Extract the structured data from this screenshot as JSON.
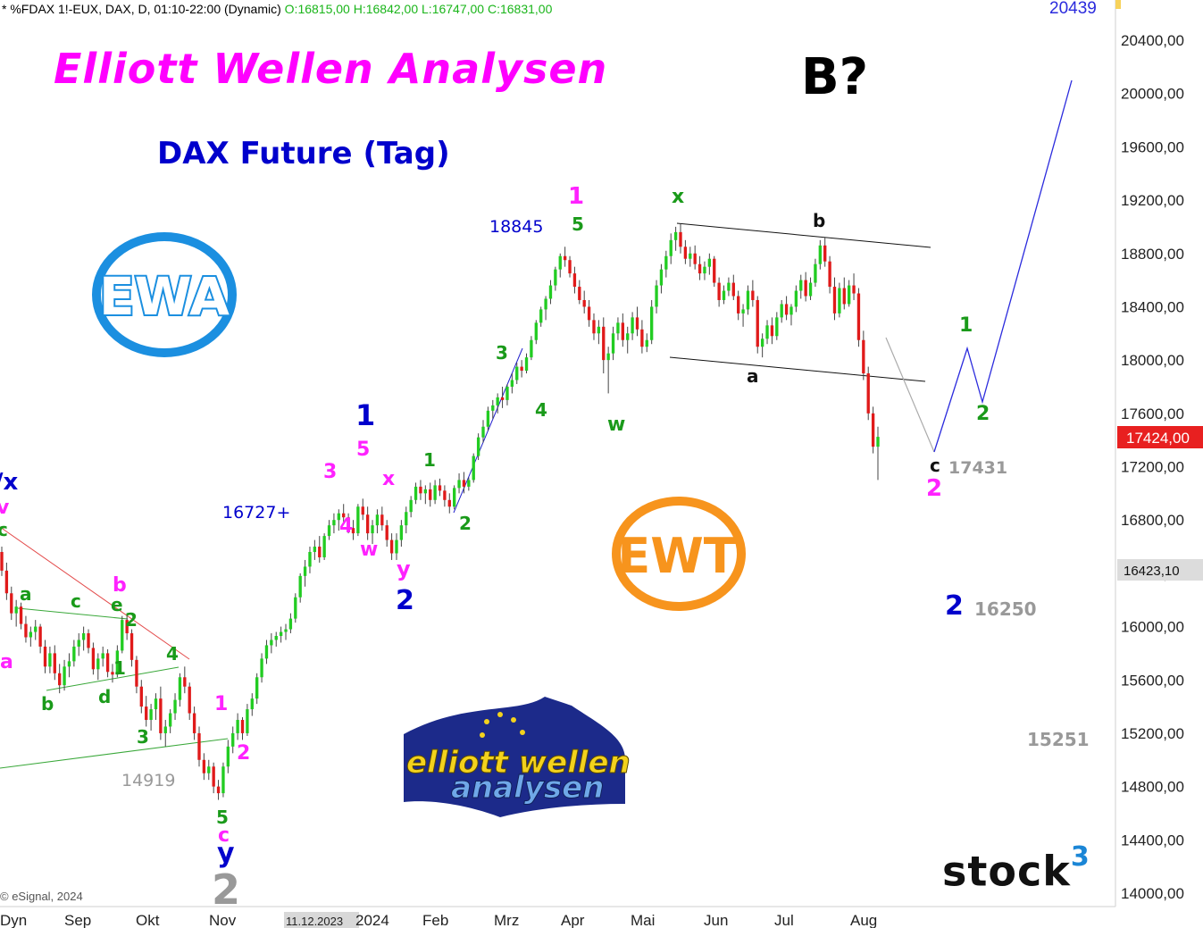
{
  "header": {
    "symbol_text": "* %FDAX 1!-EUX, DAX, D, 01:10-22:00 (Dynamic)",
    "ohlc_text": "O:16815,00 H:16842,00 L:16747,00 C:16831,00"
  },
  "titles": {
    "main": "Elliott Wellen Analysen",
    "instrument": "DAX Future (Tag)",
    "scenario": "B?"
  },
  "logos": {
    "ewa": "EWA",
    "ewt": "EWT",
    "ewa_banner_line1": "elliott wellen",
    "ewa_banner_line2": "analysen",
    "stock3": "stock",
    "stock3_sup": "3"
  },
  "copyright": "© eSignal, 2024",
  "chart_data": {
    "type": "candlestick",
    "y_axis_labels": [
      "20400,00",
      "20000,00",
      "19600,00",
      "19200,00",
      "18800,00",
      "18400,00",
      "18000,00",
      "17600,00",
      "17200,00",
      "16800,00",
      "16400,00",
      "16000,00",
      "15600,00",
      "15200,00",
      "14800,00",
      "14400,00",
      "14000,00"
    ],
    "y_values": [
      20400,
      20000,
      19600,
      19200,
      18800,
      18400,
      18000,
      17600,
      17200,
      16800,
      16400,
      16000,
      15600,
      15200,
      14800,
      14400,
      14000
    ],
    "last_price_label": "17424,00",
    "last_price": 17424,
    "crosshair_label": "16423,10",
    "crosshair_price": 16423.1,
    "top_target_label": "20439",
    "x_axis_labels": [
      "Dyn",
      "Sep",
      "Okt",
      "Nov",
      "11.12.2023",
      "2024",
      "Feb",
      "Mrz",
      "Apr",
      "Mai",
      "Jun",
      "Jul",
      "Aug"
    ],
    "candles": [
      [
        16560,
        16600,
        16380,
        16420
      ],
      [
        16420,
        16480,
        16200,
        16250
      ],
      [
        16250,
        16300,
        16050,
        16100
      ],
      [
        16100,
        16200,
        16000,
        16150
      ],
      [
        16150,
        16180,
        15980,
        16020
      ],
      [
        16020,
        16080,
        15880,
        15920
      ],
      [
        15920,
        16000,
        15850,
        15960
      ],
      [
        15960,
        16050,
        15900,
        16000
      ],
      [
        16000,
        16020,
        15800,
        15850
      ],
      [
        15850,
        15900,
        15650,
        15700
      ],
      [
        15700,
        15850,
        15650,
        15800
      ],
      [
        15800,
        15860,
        15600,
        15650
      ],
      [
        15650,
        15720,
        15500,
        15560
      ],
      [
        15560,
        15750,
        15520,
        15700
      ],
      [
        15700,
        15800,
        15620,
        15740
      ],
      [
        15740,
        15900,
        15700,
        15850
      ],
      [
        15850,
        15950,
        15780,
        15900
      ],
      [
        15900,
        16000,
        15820,
        15950
      ],
      [
        15950,
        15980,
        15800,
        15840
      ],
      [
        15840,
        15880,
        15640,
        15680
      ],
      [
        15680,
        15800,
        15600,
        15760
      ],
      [
        15760,
        15850,
        15700,
        15800
      ],
      [
        15800,
        15830,
        15620,
        15660
      ],
      [
        15660,
        15720,
        15580,
        15640
      ],
      [
        15640,
        15860,
        15620,
        15820
      ],
      [
        15820,
        16080,
        15800,
        16050
      ],
      [
        16050,
        16100,
        15900,
        15950
      ],
      [
        15950,
        15980,
        15700,
        15750
      ],
      [
        15750,
        15780,
        15500,
        15550
      ],
      [
        15550,
        15600,
        15350,
        15400
      ],
      [
        15400,
        15480,
        15250,
        15300
      ],
      [
        15300,
        15420,
        15220,
        15380
      ],
      [
        15380,
        15500,
        15300,
        15460
      ],
      [
        15460,
        15550,
        15150,
        15200
      ],
      [
        15200,
        15300,
        15100,
        15250
      ],
      [
        15250,
        15380,
        15200,
        15350
      ],
      [
        15350,
        15500,
        15300,
        15450
      ],
      [
        15450,
        15650,
        15400,
        15620
      ],
      [
        15620,
        15700,
        15500,
        15550
      ],
      [
        15550,
        15580,
        15300,
        15350
      ],
      [
        15350,
        15400,
        15150,
        15200
      ],
      [
        15200,
        15250,
        14950,
        15000
      ],
      [
        15000,
        15050,
        14850,
        14900
      ],
      [
        14900,
        15000,
        14850,
        14950
      ],
      [
        14950,
        14980,
        14750,
        14800
      ],
      [
        14800,
        14850,
        14700,
        14750
      ],
      [
        14750,
        14980,
        14720,
        14950
      ],
      [
        14950,
        15150,
        14900,
        15100
      ],
      [
        15100,
        15250,
        15050,
        15200
      ],
      [
        15200,
        15350,
        15150,
        15300
      ],
      [
        15300,
        15320,
        15150,
        15200
      ],
      [
        15200,
        15420,
        15180,
        15380
      ],
      [
        15380,
        15500,
        15330,
        15460
      ],
      [
        15460,
        15650,
        15420,
        15620
      ],
      [
        15620,
        15800,
        15580,
        15760
      ],
      [
        15760,
        15900,
        15720,
        15860
      ],
      [
        15860,
        15950,
        15800,
        15900
      ],
      [
        15900,
        15960,
        15850,
        15930
      ],
      [
        15930,
        16000,
        15880,
        15960
      ],
      [
        15960,
        16020,
        15900,
        15980
      ],
      [
        15980,
        16100,
        15950,
        16060
      ],
      [
        16060,
        16250,
        16030,
        16220
      ],
      [
        16220,
        16400,
        16180,
        16380
      ],
      [
        16380,
        16500,
        16300,
        16450
      ],
      [
        16450,
        16600,
        16400,
        16560
      ],
      [
        16560,
        16650,
        16500,
        16600
      ],
      [
        16600,
        16680,
        16480,
        16520
      ],
      [
        16520,
        16700,
        16500,
        16680
      ],
      [
        16680,
        16800,
        16650,
        16760
      ],
      [
        16760,
        16850,
        16700,
        16800
      ],
      [
        16800,
        16880,
        16720,
        16850
      ],
      [
        16850,
        16920,
        16780,
        16820
      ],
      [
        16820,
        16850,
        16700,
        16740
      ],
      [
        16740,
        16800,
        16650,
        16700
      ],
      [
        16700,
        16920,
        16680,
        16900
      ],
      [
        16900,
        16960,
        16800,
        16840
      ],
      [
        16840,
        16900,
        16650,
        16700
      ],
      [
        16700,
        16800,
        16620,
        16760
      ],
      [
        16760,
        16880,
        16700,
        16840
      ],
      [
        16840,
        16900,
        16720,
        16760
      ],
      [
        16760,
        16800,
        16600,
        16650
      ],
      [
        16650,
        16700,
        16500,
        16550
      ],
      [
        16550,
        16700,
        16500,
        16650
      ],
      [
        16650,
        16800,
        16600,
        16760
      ],
      [
        16760,
        16900,
        16700,
        16860
      ],
      [
        16860,
        16980,
        16820,
        16950
      ],
      [
        16950,
        17080,
        16920,
        17050
      ],
      [
        17050,
        17100,
        16950,
        17000
      ],
      [
        17000,
        17060,
        16920,
        17030
      ],
      [
        17030,
        17080,
        16900,
        16950
      ],
      [
        16950,
        17100,
        16920,
        17060
      ],
      [
        17060,
        17110,
        16980,
        17020
      ],
      [
        17020,
        17060,
        16900,
        16950
      ],
      [
        16950,
        17000,
        16850,
        16900
      ],
      [
        16900,
        17060,
        16880,
        17040
      ],
      [
        17040,
        17150,
        17000,
        17100
      ],
      [
        17100,
        17160,
        17000,
        17050
      ],
      [
        17050,
        17120,
        17020,
        17100
      ],
      [
        17100,
        17300,
        17080,
        17280
      ],
      [
        17280,
        17450,
        17250,
        17420
      ],
      [
        17420,
        17550,
        17380,
        17500
      ],
      [
        17500,
        17650,
        17470,
        17620
      ],
      [
        17620,
        17700,
        17560,
        17660
      ],
      [
        17660,
        17750,
        17600,
        17720
      ],
      [
        17720,
        17800,
        17640,
        17700
      ],
      [
        17700,
        17820,
        17660,
        17800
      ],
      [
        17800,
        17900,
        17750,
        17850
      ],
      [
        17850,
        17980,
        17820,
        17950
      ],
      [
        17950,
        18000,
        17870,
        17920
      ],
      [
        17920,
        18050,
        17900,
        18020
      ],
      [
        18020,
        18180,
        18000,
        18150
      ],
      [
        18150,
        18300,
        18120,
        18280
      ],
      [
        18280,
        18400,
        18250,
        18380
      ],
      [
        18380,
        18480,
        18300,
        18460
      ],
      [
        18460,
        18600,
        18420,
        18560
      ],
      [
        18560,
        18700,
        18520,
        18680
      ],
      [
        18680,
        18800,
        18620,
        18780
      ],
      [
        18780,
        18850,
        18700,
        18750
      ],
      [
        18750,
        18780,
        18620,
        18650
      ],
      [
        18650,
        18700,
        18500,
        18550
      ],
      [
        18550,
        18600,
        18420,
        18450
      ],
      [
        18450,
        18520,
        18350,
        18400
      ],
      [
        18400,
        18450,
        18250,
        18300
      ],
      [
        18300,
        18350,
        18150,
        18200
      ],
      [
        18200,
        18300,
        18120,
        18250
      ],
      [
        18250,
        18320,
        17900,
        18000
      ],
      [
        18000,
        18100,
        17750,
        18050
      ],
      [
        18050,
        18250,
        18000,
        18200
      ],
      [
        18200,
        18320,
        18150,
        18280
      ],
      [
        18280,
        18350,
        18100,
        18150
      ],
      [
        18150,
        18250,
        18050,
        18200
      ],
      [
        18200,
        18360,
        18150,
        18320
      ],
      [
        18320,
        18400,
        18180,
        18230
      ],
      [
        18230,
        18300,
        18050,
        18100
      ],
      [
        18100,
        18200,
        18060,
        18150
      ],
      [
        18150,
        18450,
        18120,
        18400
      ],
      [
        18400,
        18600,
        18350,
        18560
      ],
      [
        18560,
        18720,
        18500,
        18680
      ],
      [
        18680,
        18820,
        18620,
        18780
      ],
      [
        18780,
        18950,
        18720,
        18900
      ],
      [
        18900,
        19000,
        18820,
        18960
      ],
      [
        18960,
        19020,
        18800,
        18850
      ],
      [
        18850,
        18900,
        18720,
        18760
      ],
      [
        18760,
        18850,
        18700,
        18800
      ],
      [
        18800,
        18860,
        18680,
        18720
      ],
      [
        18720,
        18780,
        18600,
        18650
      ],
      [
        18650,
        18740,
        18600,
        18700
      ],
      [
        18700,
        18800,
        18640,
        18760
      ],
      [
        18760,
        18780,
        18550,
        18580
      ],
      [
        18580,
        18620,
        18400,
        18450
      ],
      [
        18450,
        18560,
        18420,
        18520
      ],
      [
        18520,
        18620,
        18480,
        18580
      ],
      [
        18580,
        18640,
        18450,
        18480
      ],
      [
        18480,
        18520,
        18300,
        18350
      ],
      [
        18350,
        18420,
        18250,
        18380
      ],
      [
        18380,
        18560,
        18340,
        18520
      ],
      [
        18520,
        18600,
        18400,
        18450
      ],
      [
        18450,
        18480,
        18050,
        18100
      ],
      [
        18100,
        18200,
        18020,
        18160
      ],
      [
        18160,
        18300,
        18120,
        18260
      ],
      [
        18260,
        18320,
        18120,
        18180
      ],
      [
        18180,
        18360,
        18150,
        18320
      ],
      [
        18320,
        18450,
        18280,
        18420
      ],
      [
        18420,
        18480,
        18300,
        18340
      ],
      [
        18340,
        18420,
        18260,
        18400
      ],
      [
        18400,
        18560,
        18360,
        18520
      ],
      [
        18520,
        18640,
        18460,
        18600
      ],
      [
        18600,
        18660,
        18440,
        18480
      ],
      [
        18480,
        18620,
        18450,
        18580
      ],
      [
        18580,
        18760,
        18550,
        18720
      ],
      [
        18720,
        18900,
        18680,
        18860
      ],
      [
        18860,
        18920,
        18700,
        18740
      ],
      [
        18740,
        18780,
        18500,
        18550
      ],
      [
        18550,
        18620,
        18300,
        18350
      ],
      [
        18350,
        18580,
        18320,
        18540
      ],
      [
        18540,
        18620,
        18380,
        18420
      ],
      [
        18420,
        18600,
        18400,
        18560
      ],
      [
        18560,
        18650,
        18450,
        18500
      ],
      [
        18500,
        18540,
        18100,
        18150
      ],
      [
        18150,
        18220,
        17850,
        17900
      ],
      [
        17900,
        17950,
        17550,
        17600
      ],
      [
        17600,
        17650,
        17300,
        17350
      ],
      [
        17350,
        17500,
        17100,
        17424
      ]
    ]
  },
  "annotations": {
    "left_x": "/x",
    "left_v": "v",
    "left_c_top": "c",
    "left_a_magenta": "a",
    "tri_a": "a",
    "tri_b_green": "b",
    "tri_c": "c",
    "tri_d": "d",
    "tri_e": "e",
    "b_magenta": "b",
    "n2_green_left": "2",
    "n1_green_left": "1",
    "n3_green_left": "3",
    "n4_green_left": "4",
    "val_14919": "14919",
    "n5_green_low": "5",
    "c_magenta_low": "c",
    "y_blue_low": "y",
    "n2_grey_low": "2",
    "n1_magenta_low": "1",
    "n2_magenta_low": "2",
    "val_16727": "16727+",
    "n1_blue_mid": "1",
    "n5_magenta_mid": "5",
    "n3_magenta_mid": "3",
    "n4_magenta_mid": "4",
    "w_magenta_mid": "w",
    "x_magenta_mid": "x",
    "y_magenta_mid": "y",
    "n2_blue_mid": "2",
    "n1_green_mid": "1",
    "n2_green_mid": "2",
    "n3_green_mid": "3",
    "n4_green_mid": "4",
    "val_18845": "18845",
    "n1_magenta_top": "1",
    "n5_green_top": "5",
    "w_green": "w",
    "x_green": "x",
    "b_black": "b",
    "a_black": "a",
    "c_black": "c",
    "val_17431": "17431",
    "n2_magenta_right": "2",
    "n1_green_right": "1",
    "n2_green_right": "2",
    "n2_blue_right": "2",
    "val_16250": "16250",
    "val_15251": "15251"
  },
  "colors": {
    "up": "#22cc22",
    "down": "#e01a1a",
    "magenta": "#ff22ff",
    "green": "#1a9a1a",
    "blue": "#0000cc",
    "grey": "#999999",
    "orange": "#f7941d",
    "ewa_blue": "#1b8fe0"
  }
}
